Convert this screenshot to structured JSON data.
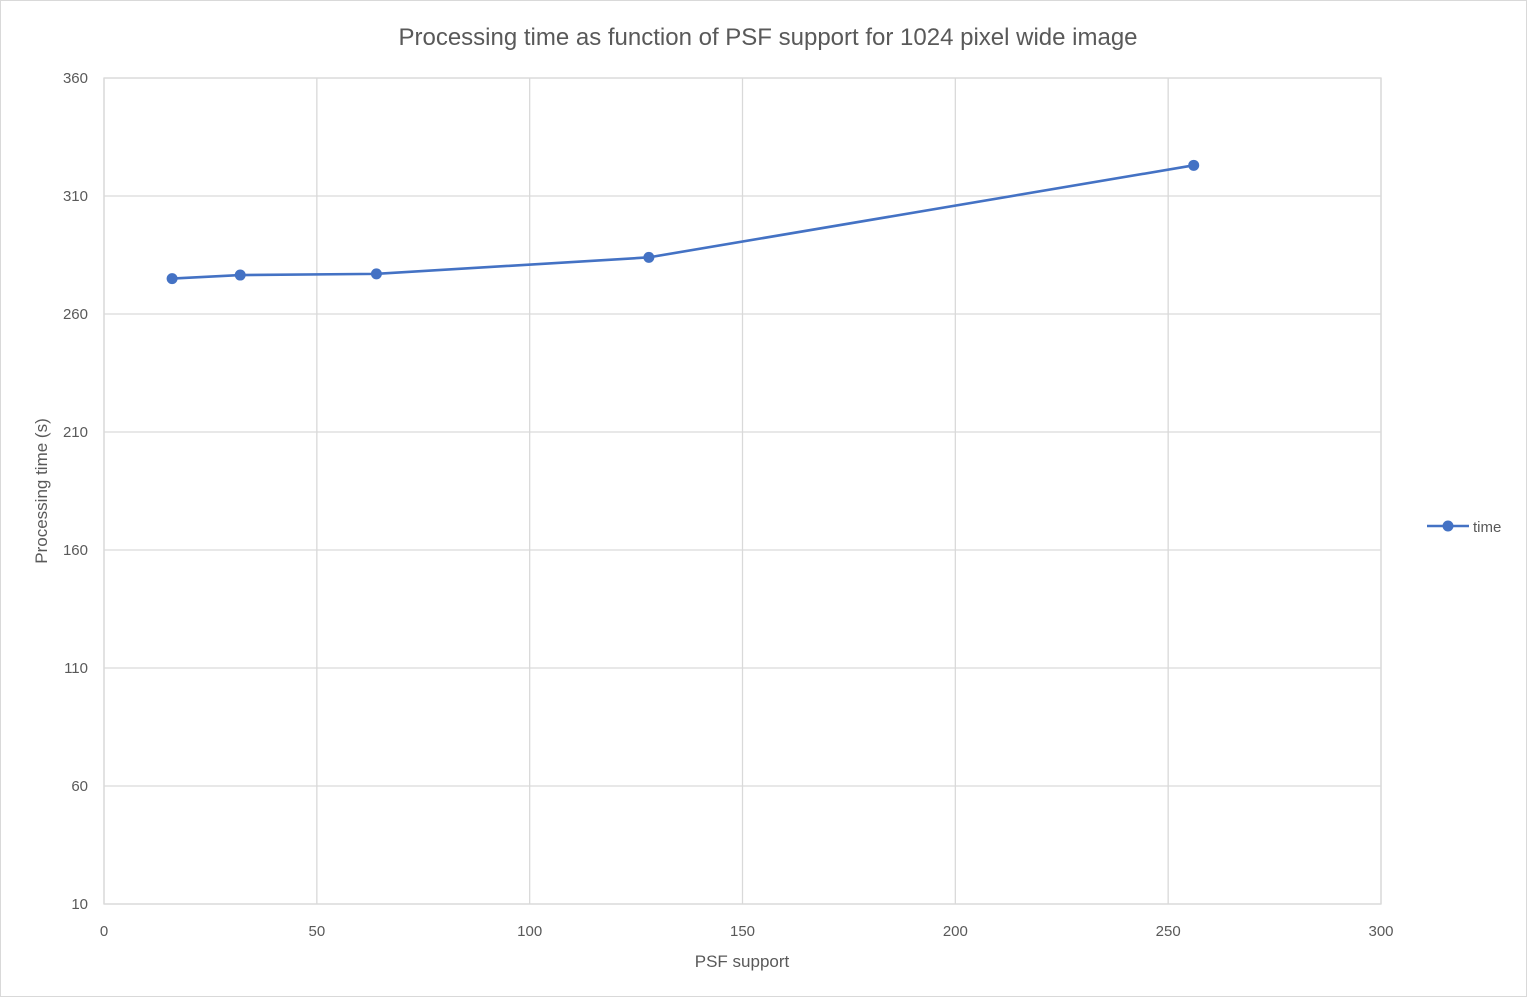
{
  "chart_data": {
    "type": "scatter",
    "title": "Processing time as function of PSF support for 1024 pixel wide image",
    "xlabel": "PSF support",
    "ylabel": "Processing time (s)",
    "xlim": [
      0,
      300
    ],
    "ylim": [
      10,
      360
    ],
    "x_ticks": [
      0,
      50,
      100,
      150,
      200,
      250,
      300
    ],
    "y_ticks": [
      10,
      60,
      110,
      160,
      210,
      260,
      310,
      360
    ],
    "grid": true,
    "legend_position": "right",
    "series": [
      {
        "name": "time",
        "color": "#4472c4",
        "marker": "circle",
        "line": true,
        "points": [
          {
            "x": 16,
            "y": 275
          },
          {
            "x": 32,
            "y": 276.5
          },
          {
            "x": 64,
            "y": 277
          },
          {
            "x": 128,
            "y": 284
          },
          {
            "x": 256,
            "y": 323
          }
        ]
      }
    ]
  }
}
